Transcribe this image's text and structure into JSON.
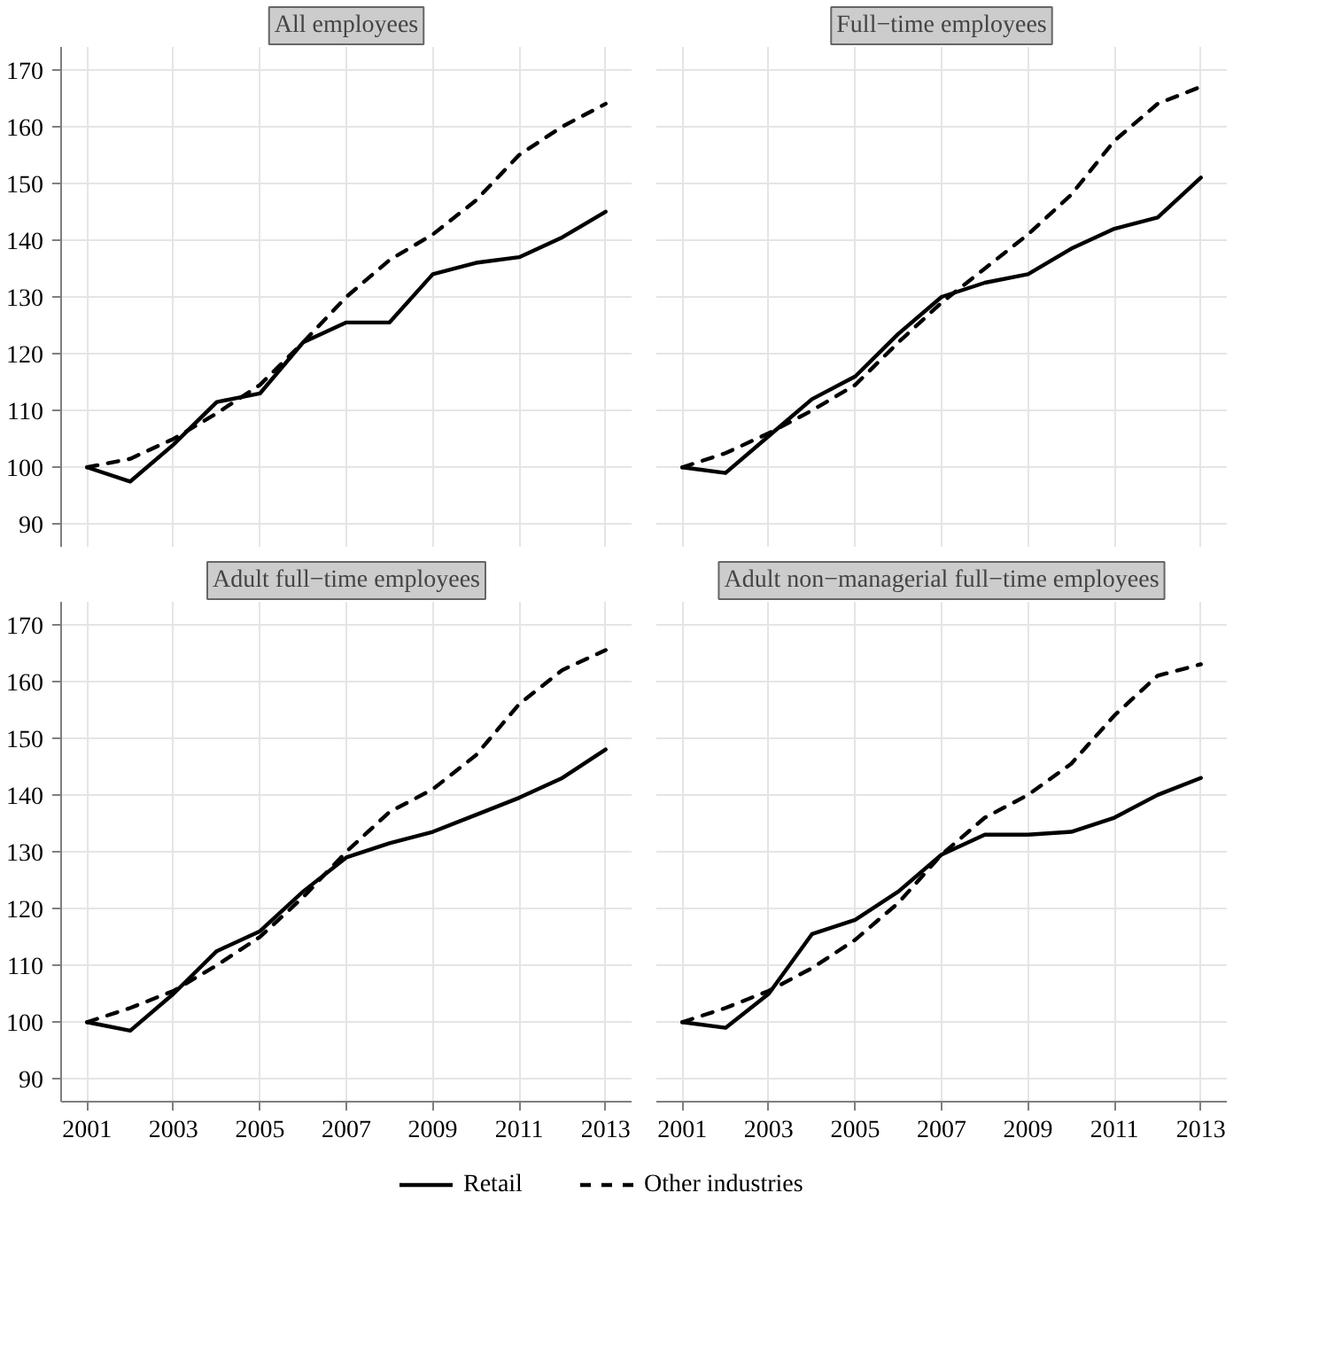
{
  "chart_data": [
    {
      "type": "line",
      "title": "All employees",
      "x": [
        2001,
        2002,
        2003,
        2004,
        2005,
        2006,
        2007,
        2008,
        2009,
        2010,
        2011,
        2012,
        2013
      ],
      "xlim": [
        2000.4,
        2013.6
      ],
      "ylim": [
        86,
        174
      ],
      "xticks": [
        2001,
        2003,
        2005,
        2007,
        2009,
        2011,
        2013
      ],
      "yticks": [
        90,
        100,
        110,
        120,
        130,
        140,
        150,
        160,
        170
      ],
      "grid": true,
      "tick_labels": "y",
      "series": [
        {
          "color": "#000000",
          "line_style": "solid",
          "values": [
            100,
            97.5,
            104,
            111.5,
            113,
            122,
            125.5,
            125.5,
            134,
            136,
            137,
            140.5,
            145
          ]
        },
        {
          "color": "#000000",
          "line_style": "dashed",
          "values": [
            100,
            101.5,
            105,
            109.5,
            114.5,
            122,
            130,
            136.5,
            141,
            147,
            155,
            160,
            164
          ]
        }
      ]
    },
    {
      "type": "line",
      "title": "Full−time employees",
      "x": [
        2001,
        2002,
        2003,
        2004,
        2005,
        2006,
        2007,
        2008,
        2009,
        2010,
        2011,
        2012,
        2013
      ],
      "xlim": [
        2000.4,
        2013.6
      ],
      "ylim": [
        86,
        174
      ],
      "xticks": [
        2001,
        2003,
        2005,
        2007,
        2009,
        2011,
        2013
      ],
      "yticks": [
        90,
        100,
        110,
        120,
        130,
        140,
        150,
        160,
        170
      ],
      "grid": true,
      "tick_labels": false,
      "series": [
        {
          "color": "#000000",
          "line_style": "solid",
          "values": [
            100,
            99,
            105.5,
            112,
            116,
            123.5,
            130,
            132.5,
            134,
            138.5,
            142,
            144,
            151
          ]
        },
        {
          "color": "#000000",
          "line_style": "dashed",
          "values": [
            100,
            102.5,
            106,
            110,
            114.5,
            122,
            129,
            135,
            141,
            148,
            157.5,
            164,
            167
          ]
        }
      ]
    },
    {
      "type": "line",
      "title": "Adult full−time employees",
      "x": [
        2001,
        2002,
        2003,
        2004,
        2005,
        2006,
        2007,
        2008,
        2009,
        2010,
        2011,
        2012,
        2013
      ],
      "xlim": [
        2000.4,
        2013.6
      ],
      "ylim": [
        86,
        174
      ],
      "xticks": [
        2001,
        2003,
        2005,
        2007,
        2009,
        2011,
        2013
      ],
      "yticks": [
        90,
        100,
        110,
        120,
        130,
        140,
        150,
        160,
        170
      ],
      "grid": true,
      "series": [
        {
          "color": "#000000",
          "line_style": "solid",
          "values": [
            100,
            98.5,
            105,
            112.5,
            116,
            123,
            129,
            131.5,
            133.5,
            136.5,
            139.5,
            143,
            148
          ]
        },
        {
          "color": "#000000",
          "line_style": "dashed",
          "values": [
            100,
            102.5,
            105.5,
            110,
            115,
            122,
            130,
            137,
            141,
            147,
            156,
            162,
            165.5
          ]
        }
      ]
    },
    {
      "type": "line",
      "title": "Adult non−managerial full−time employees",
      "x": [
        2001,
        2002,
        2003,
        2004,
        2005,
        2006,
        2007,
        2008,
        2009,
        2010,
        2011,
        2012,
        2013
      ],
      "xlim": [
        2000.4,
        2013.6
      ],
      "ylim": [
        86,
        174
      ],
      "xticks": [
        2001,
        2003,
        2005,
        2007,
        2009,
        2011,
        2013
      ],
      "yticks": [
        90,
        100,
        110,
        120,
        130,
        140,
        150,
        160,
        170
      ],
      "grid": true,
      "tick_labels": "x",
      "legend": "bottom",
      "series": [
        {
          "name": "Retail",
          "color": "#000000",
          "line_style": "solid",
          "values": [
            100,
            99,
            105,
            115.5,
            118,
            123,
            129.5,
            133,
            133,
            133.5,
            136,
            140,
            143
          ]
        },
        {
          "name": "Other industries",
          "color": "#000000",
          "line_style": "dashed",
          "values": [
            100,
            102.5,
            105.5,
            109.5,
            114.5,
            121,
            129.5,
            136,
            140,
            145.5,
            154,
            161,
            163
          ]
        }
      ]
    }
  ]
}
